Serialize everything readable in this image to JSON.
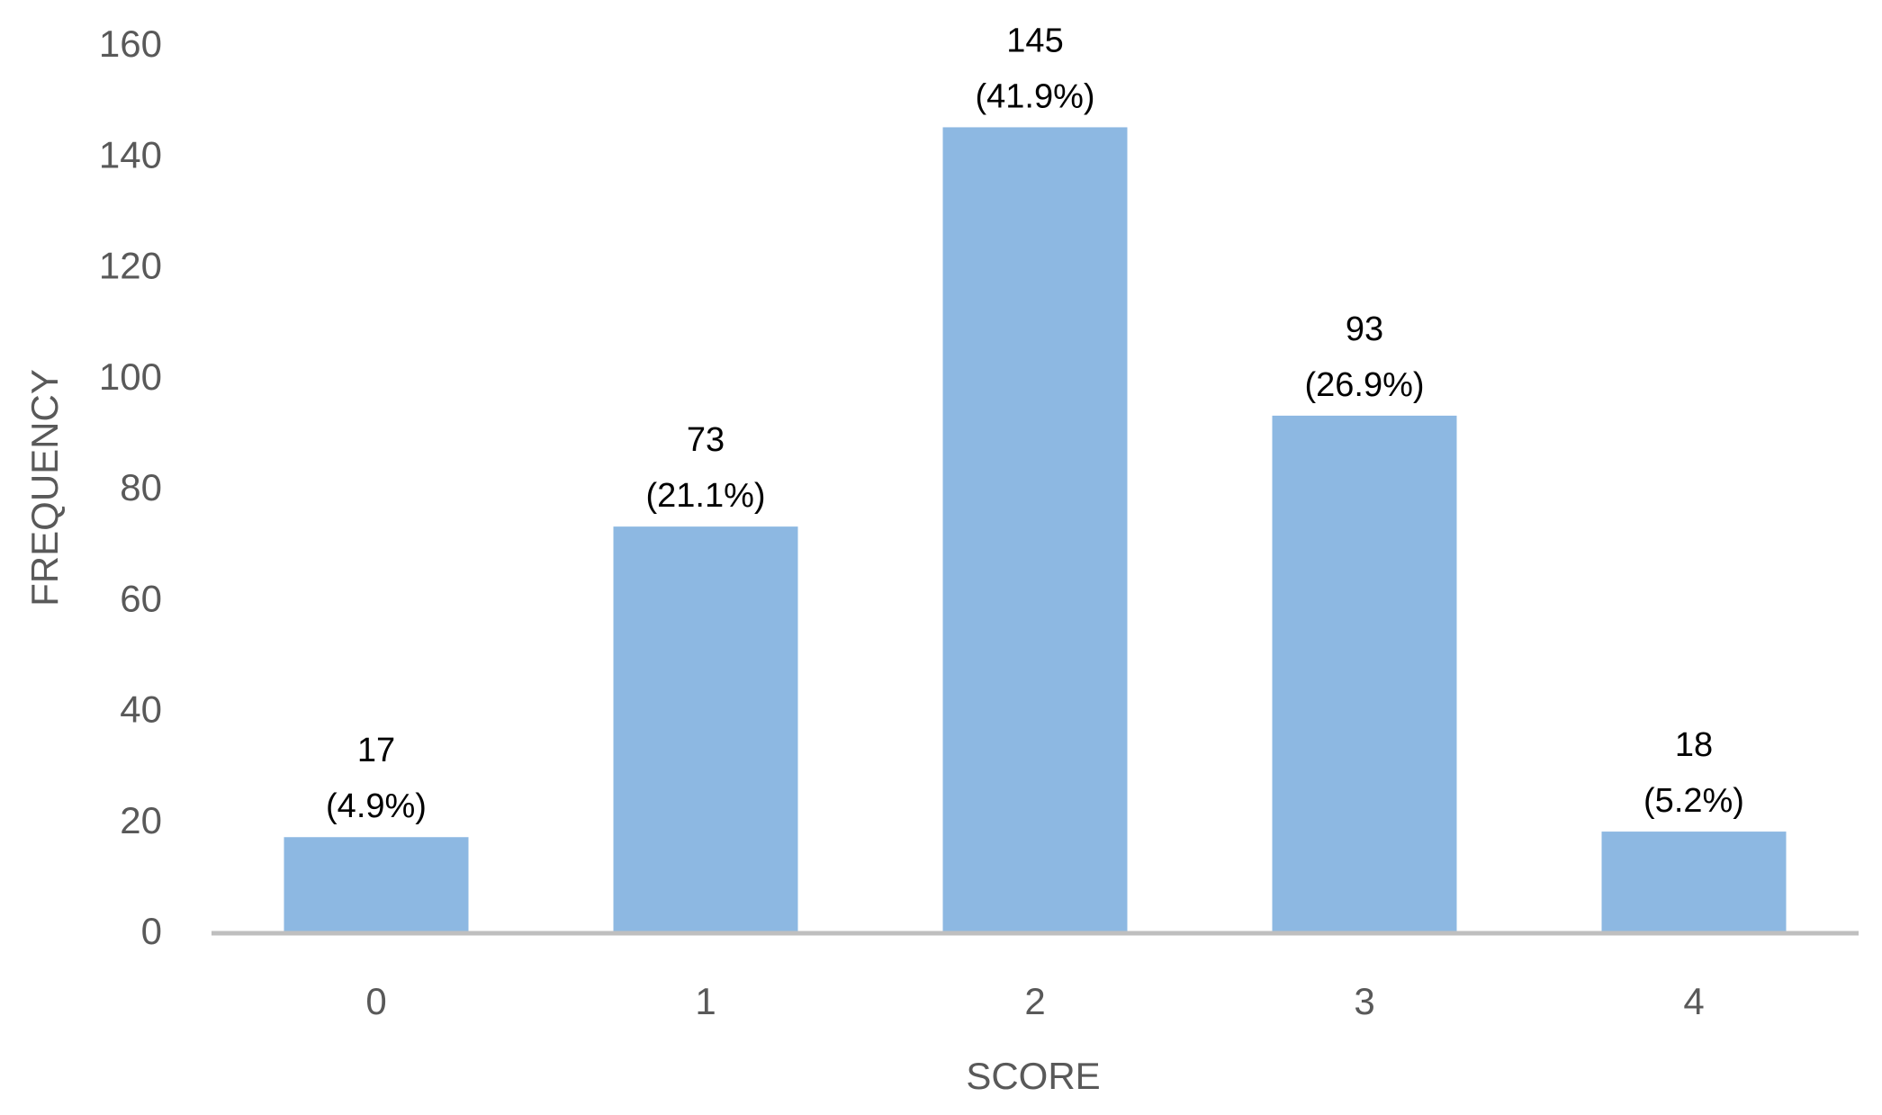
{
  "chart_data": {
    "type": "bar",
    "title": "",
    "xlabel": "SCORE",
    "ylabel": "FREQUENCY",
    "categories": [
      "0",
      "1",
      "2",
      "3",
      "4"
    ],
    "values": [
      17,
      73,
      145,
      93,
      18
    ],
    "data_labels": [
      [
        "17",
        "(4.9%)"
      ],
      [
        "73",
        "(21.1%)"
      ],
      [
        "145",
        "(41.9%)"
      ],
      [
        "93",
        "(26.9%)"
      ],
      [
        "18",
        "(5.2%)"
      ]
    ],
    "ylim": [
      0,
      160
    ],
    "yticks": [
      0,
      20,
      40,
      60,
      80,
      100,
      120,
      140,
      160
    ],
    "grid": false,
    "legend": "none",
    "colors": {
      "bar": "#8DB8E2",
      "axis_line": "#BFBFBF",
      "tick_text": "#595959",
      "label_text": "#000000"
    }
  }
}
